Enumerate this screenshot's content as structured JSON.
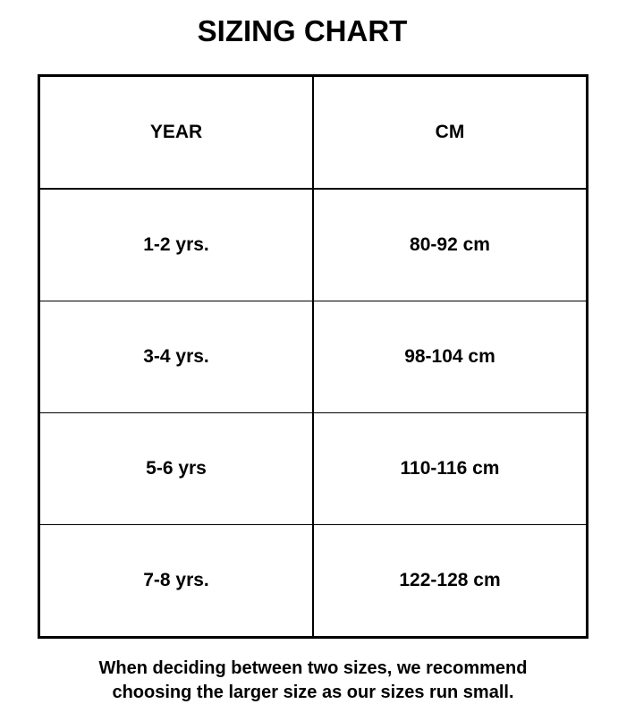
{
  "title": "SIZING CHART",
  "table": {
    "headers": [
      "YEAR",
      "CM"
    ],
    "rows": [
      [
        "1-2 yrs.",
        "80-92 cm"
      ],
      [
        "3-4 yrs.",
        "98-104 cm"
      ],
      [
        "5-6 yrs",
        "110-116 cm"
      ],
      [
        "7-8 yrs.",
        "122-128 cm"
      ]
    ]
  },
  "note": {
    "line1": "When deciding between two sizes, we recommend",
    "line2": "choosing the larger size as our sizes run small."
  }
}
